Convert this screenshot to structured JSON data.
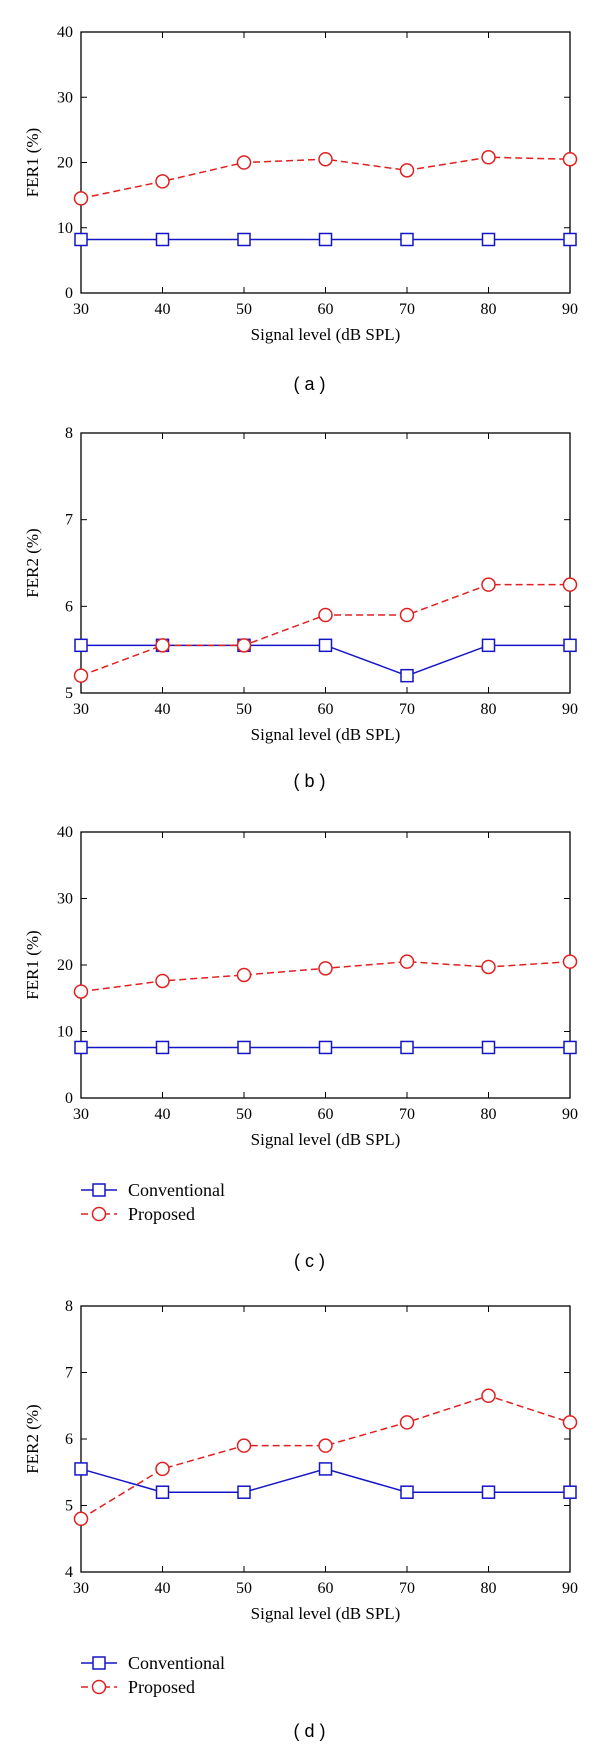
{
  "colors": {
    "conventional": "#1515c8",
    "proposed": "#e02020",
    "axis": "#000000"
  },
  "chart_data": [
    {
      "type": "line",
      "panel": "( a )",
      "xlabel": "Signal level (dB SPL)",
      "ylabel": "FER1 (%)",
      "x": [
        30,
        40,
        50,
        60,
        70,
        80,
        90
      ],
      "xlim": [
        30,
        90
      ],
      "ylim": [
        0,
        40
      ],
      "yticks": [
        0,
        10,
        20,
        30,
        40
      ],
      "legend": "none",
      "series": [
        {
          "name": "Conventional",
          "marker": "square",
          "dash": "solid",
          "values": [
            8.2,
            8.2,
            8.2,
            8.2,
            8.2,
            8.2,
            8.2
          ]
        },
        {
          "name": "Proposed",
          "marker": "circle",
          "dash": "dashed",
          "values": [
            14.5,
            17.1,
            20.0,
            20.5,
            18.8,
            20.8,
            20.5
          ]
        }
      ]
    },
    {
      "type": "line",
      "panel": "( b )",
      "xlabel": "Signal level (dB SPL)",
      "ylabel": "FER2 (%)",
      "x": [
        30,
        40,
        50,
        60,
        70,
        80,
        90
      ],
      "xlim": [
        30,
        90
      ],
      "ylim": [
        5,
        8
      ],
      "yticks": [
        5,
        6,
        7,
        8
      ],
      "legend": "none",
      "series": [
        {
          "name": "Conventional",
          "marker": "square",
          "dash": "solid",
          "values": [
            5.55,
            5.55,
            5.55,
            5.55,
            5.2,
            5.55,
            5.55
          ]
        },
        {
          "name": "Proposed",
          "marker": "circle",
          "dash": "dashed",
          "values": [
            5.2,
            5.55,
            5.55,
            5.9,
            5.9,
            6.25,
            6.25
          ]
        }
      ]
    },
    {
      "type": "line",
      "panel": "( c )",
      "xlabel": "Signal level (dB SPL)",
      "ylabel": "FER1 (%)",
      "x": [
        30,
        40,
        50,
        60,
        70,
        80,
        90
      ],
      "xlim": [
        30,
        90
      ],
      "ylim": [
        0,
        40
      ],
      "yticks": [
        0,
        10,
        20,
        30,
        40
      ],
      "legend": "bottom-left",
      "series": [
        {
          "name": "Conventional",
          "marker": "square",
          "dash": "solid",
          "values": [
            7.6,
            7.6,
            7.6,
            7.6,
            7.6,
            7.6,
            7.6
          ]
        },
        {
          "name": "Proposed",
          "marker": "circle",
          "dash": "dashed",
          "values": [
            16.0,
            17.6,
            18.5,
            19.5,
            20.5,
            19.7,
            20.5
          ]
        }
      ]
    },
    {
      "type": "line",
      "panel": "( d )",
      "xlabel": "Signal level (dB SPL)",
      "ylabel": "FER2 (%)",
      "x": [
        30,
        40,
        50,
        60,
        70,
        80,
        90
      ],
      "xlim": [
        30,
        90
      ],
      "ylim": [
        4,
        8
      ],
      "yticks": [
        4,
        5,
        6,
        7,
        8
      ],
      "legend": "bottom-left",
      "series": [
        {
          "name": "Conventional",
          "marker": "square",
          "dash": "solid",
          "values": [
            5.55,
            5.2,
            5.2,
            5.55,
            5.2,
            5.2,
            5.2
          ]
        },
        {
          "name": "Proposed",
          "marker": "circle",
          "dash": "dashed",
          "values": [
            4.8,
            5.55,
            5.9,
            5.9,
            6.25,
            6.65,
            6.25
          ]
        }
      ]
    }
  ]
}
